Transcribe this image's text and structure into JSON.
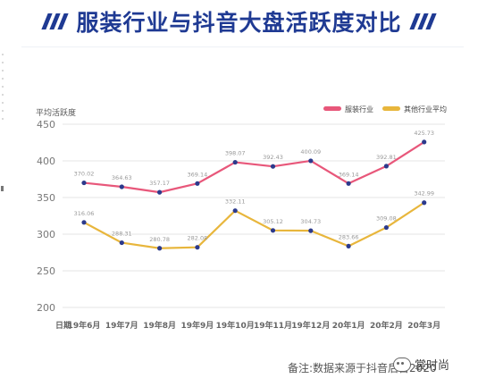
{
  "header": {
    "title": "服装行业与抖音大盘活跃度对比"
  },
  "footer": {
    "note": "备注:数据来源于抖音后台2020"
  },
  "watermark": {
    "text": "裳时尚",
    "icon": "wechat-icon"
  },
  "chart_data": {
    "type": "line",
    "title": "服装行业与抖音大盘活跃度对比",
    "xlabel": "日期",
    "ylabel": "平均活跃度",
    "ylim": [
      200,
      450
    ],
    "yticks": [
      200,
      250,
      300,
      350,
      400,
      450
    ],
    "categories": [
      "19年6月",
      "19年7月",
      "19年8月",
      "19年9月",
      "19年10月",
      "19年11月",
      "19年12月",
      "20年1月",
      "20年2月",
      "20年3月"
    ],
    "series": [
      {
        "name": "服装行业",
        "color": "#e8577a",
        "values": [
          370.02,
          364.63,
          357.17,
          369.14,
          398.07,
          392.43,
          400.09,
          369.14,
          392.81,
          425.73
        ],
        "labels": [
          "370.02",
          "364.63",
          "357.17",
          "369.14",
          "398.07",
          "392.43",
          "400.09",
          "369.14",
          "392.81",
          "425.73"
        ]
      },
      {
        "name": "其他行业平均",
        "color": "#e8b63c",
        "values": [
          316.06,
          288.31,
          280.78,
          282.08,
          332.11,
          305.12,
          304.73,
          283.66,
          309.08,
          342.99
        ],
        "labels": [
          "316.06",
          "288.31",
          "280.78",
          "282.08",
          "332.11",
          "305.12",
          "304.73",
          "283.66",
          "309.08",
          "342.99"
        ]
      }
    ],
    "marker_color": "#2c3a8c",
    "grid": true,
    "legend": "top-right"
  }
}
